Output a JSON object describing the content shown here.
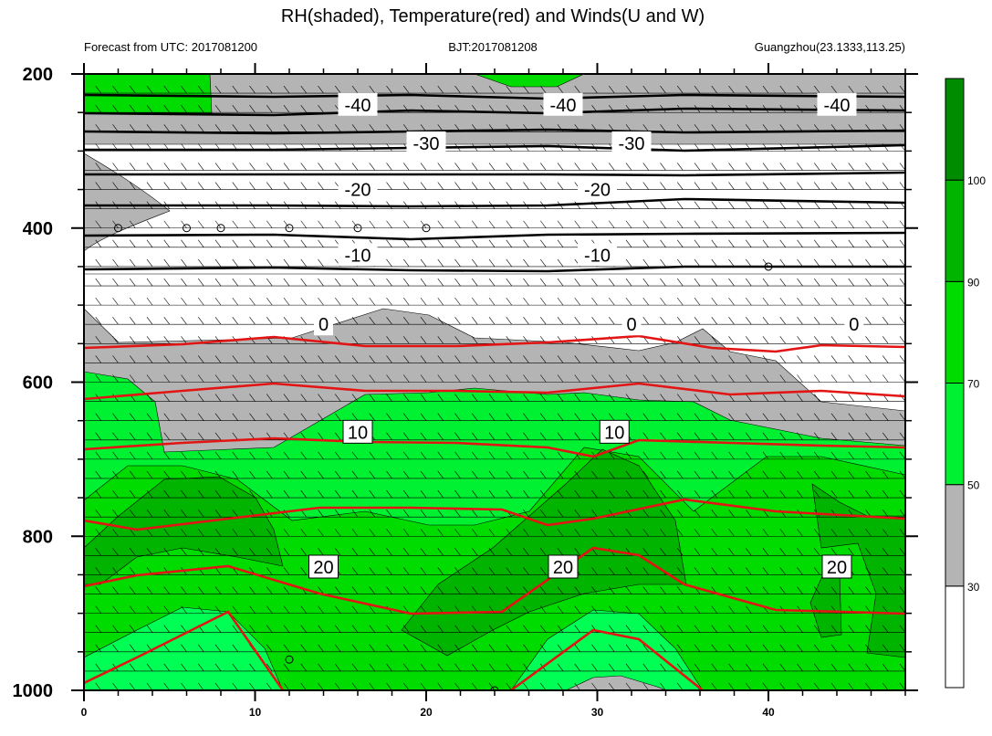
{
  "chart_data": {
    "type": "heatmap",
    "title": "RH(shaded), Temperature(red) and Winds(U and W)",
    "subtitle_left": "Forecast from UTC: 2017081200",
    "subtitle_center": "BJT:2017081208",
    "subtitle_right": "Guangzhou(23.1333,113.25)",
    "x_range": [
      0,
      48
    ],
    "x_ticks": [
      "0",
      "10",
      "20",
      "30",
      "40"
    ],
    "y_range": [
      1000,
      200
    ],
    "y_ticks": [
      "200",
      "400",
      "600",
      "800",
      "1000"
    ],
    "colorbar": {
      "levels": [
        "30",
        "50",
        "70",
        "90",
        "100"
      ],
      "colors": [
        "#ffffff",
        "#b4b4b4",
        "#00f032",
        "#00dc00",
        "#00b400",
        "#008c00"
      ]
    },
    "contours_black": [
      {
        "label": "-40",
        "pressure": 240,
        "label_x": [
          16,
          28,
          44
        ]
      },
      {
        "label": "-30",
        "pressure": 290,
        "label_x": [
          20,
          32
        ]
      },
      {
        "label": "-20",
        "pressure": 350,
        "label_x": [
          16,
          30
        ]
      },
      {
        "label": "-10",
        "pressure": 435,
        "label_x": [
          16,
          30
        ]
      },
      {
        "label": "0",
        "pressure": 525,
        "label_x": [
          14,
          32,
          45
        ]
      }
    ],
    "contours_red": [
      {
        "label": "10",
        "pressure": 665,
        "label_x": [
          16,
          31
        ]
      },
      {
        "label": "20",
        "pressure": 840,
        "label_x": [
          14,
          28,
          44
        ]
      }
    ]
  }
}
